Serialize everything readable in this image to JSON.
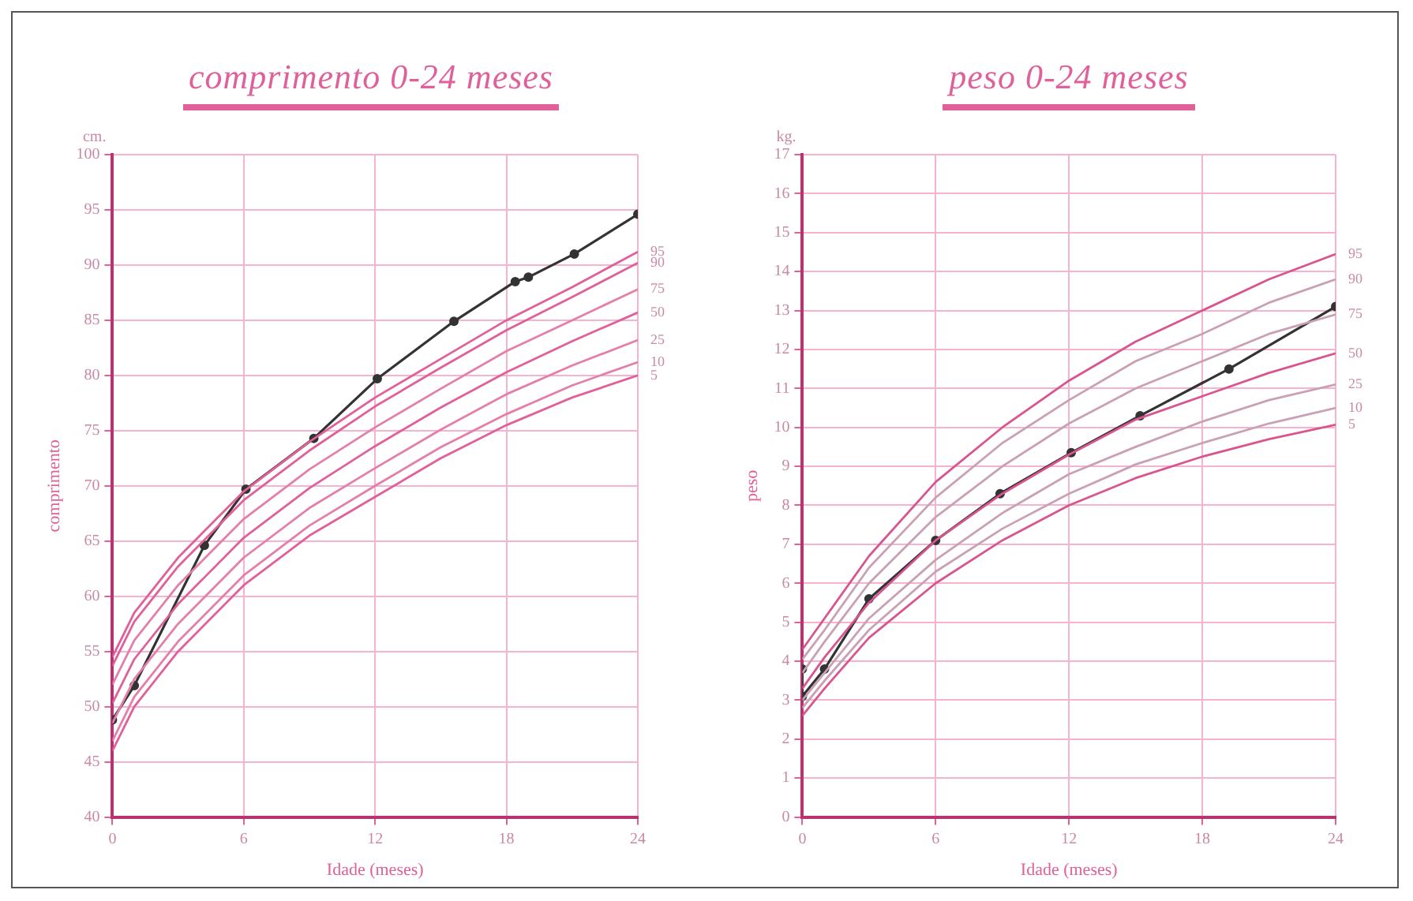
{
  "chart_data": [
    {
      "type": "line",
      "title": "comprimento 0-24 meses",
      "xlabel": "Idade (meses)",
      "ylabel": "comprimento",
      "annotations": [
        "cm."
      ],
      "xlim": [
        0,
        24
      ],
      "xticks": [
        0,
        6,
        12,
        18,
        24
      ],
      "ylim": [
        40,
        100
      ],
      "yticks": [
        40,
        45,
        50,
        55,
        60,
        65,
        70,
        75,
        80,
        85,
        90,
        95,
        100
      ],
      "grid": true,
      "legend": false,
      "marker": "circle",
      "series": [
        {
          "name": "95",
          "color": "#e0609a",
          "marker": "none",
          "x": [
            0,
            1,
            3,
            6,
            9,
            12,
            15,
            18,
            21,
            24
          ],
          "values": [
            54.5,
            58.5,
            63.5,
            69.5,
            74,
            78,
            81.5,
            85,
            88,
            91.2
          ]
        },
        {
          "name": "90",
          "color": "#e0609a",
          "marker": "none",
          "x": [
            0,
            1,
            3,
            6,
            9,
            12,
            15,
            18,
            21,
            24
          ],
          "values": [
            53.7,
            57.7,
            62.7,
            68.7,
            73.2,
            77.2,
            80.7,
            84.1,
            87.1,
            90.2
          ]
        },
        {
          "name": "75",
          "color": "#e47fab",
          "marker": "none",
          "x": [
            0,
            1,
            3,
            6,
            9,
            12,
            15,
            18,
            21,
            24
          ],
          "values": [
            52,
            56,
            61,
            67,
            71.5,
            75.3,
            78.8,
            82.2,
            85,
            87.8
          ]
        },
        {
          "name": "50",
          "color": "#e0609a",
          "marker": "none",
          "x": [
            0,
            1,
            3,
            6,
            9,
            12,
            15,
            18,
            21,
            24
          ],
          "values": [
            50.3,
            54.3,
            59.3,
            65.3,
            69.8,
            73.6,
            77.1,
            80.3,
            83.1,
            85.7
          ]
        },
        {
          "name": "25",
          "color": "#e47fab",
          "marker": "none",
          "x": [
            0,
            1,
            3,
            6,
            9,
            12,
            15,
            18,
            21,
            24
          ],
          "values": [
            48.5,
            52.5,
            57.5,
            63.5,
            68,
            71.6,
            75.1,
            78.3,
            80.9,
            83.2
          ]
        },
        {
          "name": "10",
          "color": "#e47fab",
          "marker": "none",
          "x": [
            0,
            1,
            3,
            6,
            9,
            12,
            15,
            18,
            21,
            24
          ],
          "values": [
            46.9,
            50.9,
            55.9,
            61.9,
            66.4,
            70,
            73.5,
            76.5,
            79.1,
            81.2
          ]
        },
        {
          "name": "5",
          "color": "#e0609a",
          "marker": "none",
          "x": [
            0,
            1,
            3,
            6,
            9,
            12,
            15,
            18,
            21,
            24
          ],
          "values": [
            46,
            50,
            55,
            61,
            65.5,
            69,
            72.5,
            75.5,
            78,
            80
          ]
        },
        {
          "color": "#333333",
          "x": [
            0,
            1,
            4.2,
            6.1,
            9.2,
            12.1,
            15.6,
            18.4,
            19,
            21.1,
            24
          ],
          "values": [
            48.8,
            51.9,
            64.6,
            69.7,
            74.3,
            79.7,
            84.9,
            88.5,
            88.9,
            91,
            94.6
          ]
        }
      ]
    },
    {
      "type": "line",
      "title": "peso 0-24 meses",
      "xlabel": "Idade (meses)",
      "ylabel": "peso",
      "annotations": [
        "kg."
      ],
      "xlim": [
        0,
        24
      ],
      "xticks": [
        0,
        6,
        12,
        18,
        24
      ],
      "ylim": [
        0,
        17
      ],
      "yticks": [
        0,
        1,
        2,
        3,
        4,
        5,
        6,
        7,
        8,
        9,
        10,
        11,
        12,
        13,
        14,
        15,
        16,
        17
      ],
      "grid": true,
      "legend": false,
      "marker": "circle",
      "series": [
        {
          "name": "95",
          "color": "#d9558f",
          "marker": "none",
          "x": [
            0,
            1,
            3,
            6,
            9,
            12,
            15,
            18,
            21,
            24
          ],
          "values": [
            4.3,
            5.1,
            6.7,
            8.6,
            10,
            11.2,
            12.2,
            13,
            13.8,
            14.45
          ]
        },
        {
          "name": "90",
          "color": "#c9a0b4",
          "marker": "none",
          "x": [
            0,
            1,
            3,
            6,
            9,
            12,
            15,
            18,
            21,
            24
          ],
          "values": [
            4.05,
            4.8,
            6.4,
            8.2,
            9.6,
            10.7,
            11.7,
            12.4,
            13.2,
            13.8
          ]
        },
        {
          "name": "75",
          "color": "#c9a0b4",
          "marker": "none",
          "x": [
            0,
            1,
            3,
            6,
            9,
            12,
            15,
            18,
            21,
            24
          ],
          "values": [
            3.7,
            4.5,
            6,
            7.7,
            9,
            10.1,
            11,
            11.7,
            12.4,
            12.9
          ]
        },
        {
          "name": "50",
          "color": "#d9558f",
          "marker": "none",
          "x": [
            0,
            1,
            3,
            6,
            9,
            12,
            15,
            18,
            21,
            24
          ],
          "values": [
            3.3,
            4.1,
            5.5,
            7.1,
            8.3,
            9.3,
            10.2,
            10.8,
            11.4,
            11.9
          ]
        },
        {
          "name": "25",
          "color": "#c9a0b4",
          "marker": "none",
          "x": [
            0,
            1,
            3,
            6,
            9,
            12,
            15,
            18,
            21,
            24
          ],
          "values": [
            3,
            3.7,
            5.1,
            6.6,
            7.8,
            8.8,
            9.5,
            10.15,
            10.7,
            11.1
          ]
        },
        {
          "name": "10",
          "color": "#c9a0b4",
          "marker": "none",
          "x": [
            0,
            1,
            3,
            6,
            9,
            12,
            15,
            18,
            21,
            24
          ],
          "values": [
            2.8,
            3.5,
            4.8,
            6.3,
            7.4,
            8.3,
            9.05,
            9.6,
            10.1,
            10.5
          ]
        },
        {
          "name": "5",
          "color": "#d9558f",
          "marker": "none",
          "x": [
            0,
            1,
            3,
            6,
            9,
            12,
            15,
            18,
            21,
            24
          ],
          "values": [
            2.6,
            3.3,
            4.6,
            6,
            7.1,
            8,
            8.7,
            9.25,
            9.7,
            10.07
          ]
        },
        {
          "color": "#333333",
          "x": [
            0,
            0,
            1,
            3,
            6,
            8.9,
            12.1,
            15.2,
            19.2,
            24
          ],
          "values": [
            3.8,
            3.1,
            3.8,
            5.6,
            7.1,
            8.3,
            9.35,
            10.3,
            11.5,
            13.1
          ]
        }
      ]
    }
  ]
}
